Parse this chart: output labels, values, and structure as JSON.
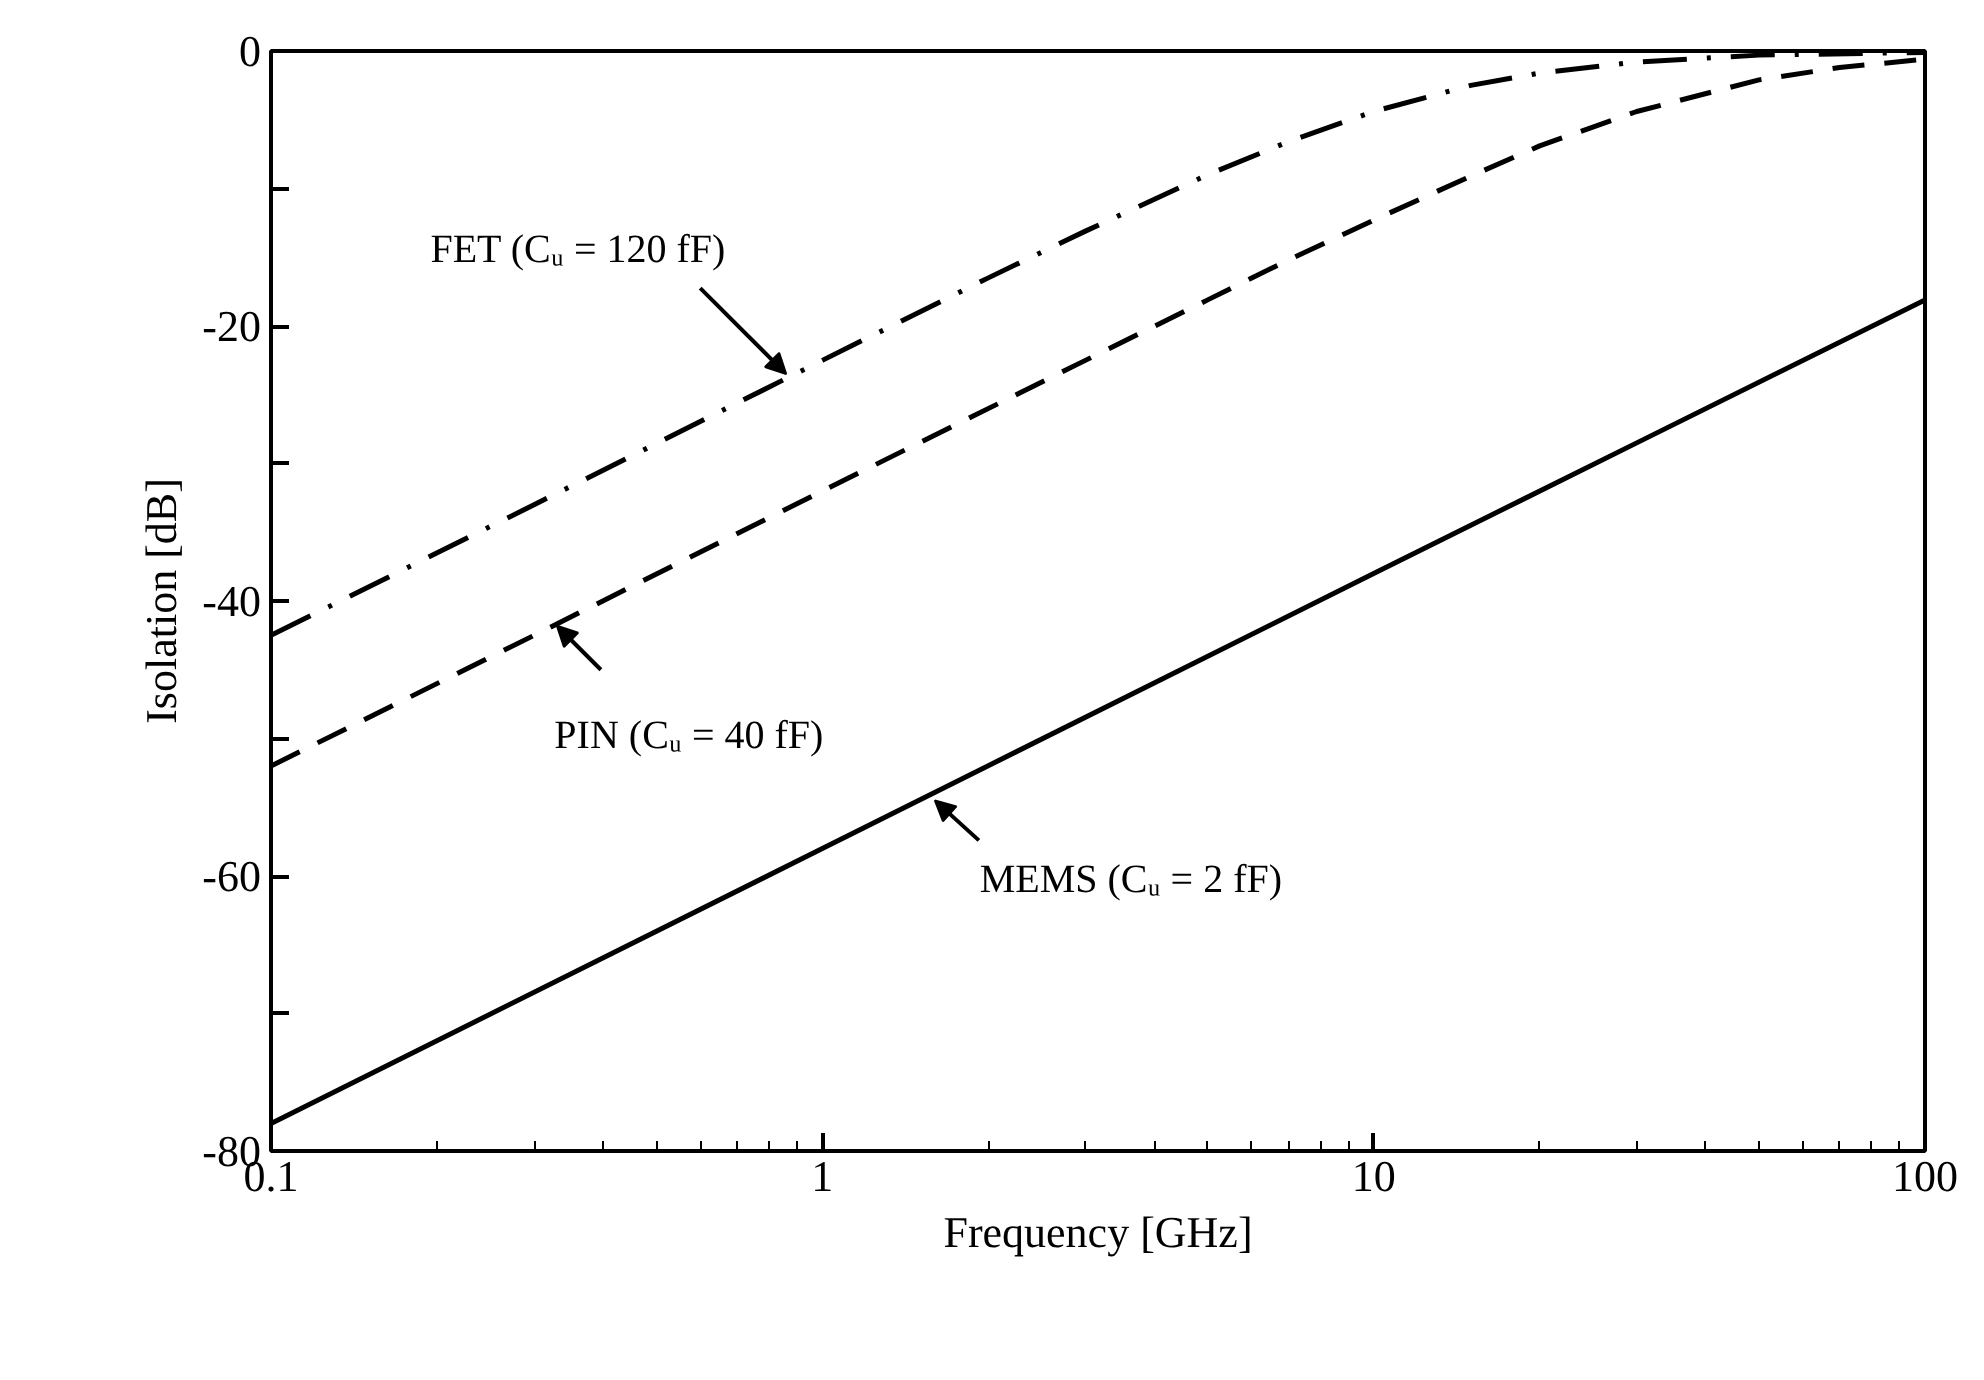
{
  "chart_data": {
    "type": "line",
    "xlabel": "Frequency [GHz]",
    "ylabel": "Isolation [dB]",
    "log": "x",
    "xlim": [
      0.1,
      100
    ],
    "xticks": [
      0.1,
      1,
      10,
      100
    ],
    "ylim": [
      -80,
      0
    ],
    "yticks": [
      -80,
      {
        "value": -70,
        "label": null
      },
      -60,
      {
        "value": -50,
        "label": null
      },
      -40,
      {
        "value": -30,
        "label": null
      },
      -20,
      {
        "value": -10,
        "label": null
      },
      0
    ],
    "grid": false,
    "series": [
      {
        "color": "#000000",
        "line_style": "dashdot",
        "x": [
          0.1,
          0.3,
          1,
          2,
          3,
          5,
          7,
          10,
          15,
          20,
          30,
          50,
          100
        ],
        "values": [
          -42.5,
          -33.0,
          -22.5,
          -16.5,
          -13.1,
          -9.0,
          -6.6,
          -4.4,
          -2.5,
          -1.6,
          -0.8,
          -0.3,
          -0.1
        ]
      },
      {
        "color": "#000000",
        "line_style": "dashed",
        "x": [
          0.1,
          0.3,
          1,
          3,
          5,
          7,
          10,
          15,
          20,
          30,
          50,
          70,
          100
        ],
        "values": [
          -52.0,
          -42.5,
          -32.0,
          -22.5,
          -18.1,
          -15.2,
          -12.3,
          -9.1,
          -6.9,
          -4.4,
          -2.1,
          -1.2,
          -0.6
        ]
      },
      {
        "color": "#000000",
        "line_style": "solid",
        "x": [
          0.1,
          1,
          10,
          30,
          100
        ],
        "values": [
          -78.0,
          -58.0,
          -38.0,
          -28.5,
          -18.1
        ]
      }
    ],
    "annotations": [
      {
        "text": "FET (Cᵤ = 120 fF)",
        "x": 0.86,
        "y": -23.5
      },
      {
        "text": "PIN (Cᵤ = 40 fF)",
        "x": 0.33,
        "y": -41.8
      },
      {
        "text": "MEMS (Cᵤ = 2 fF)",
        "x": 1.6,
        "y": -54.5
      }
    ]
  }
}
